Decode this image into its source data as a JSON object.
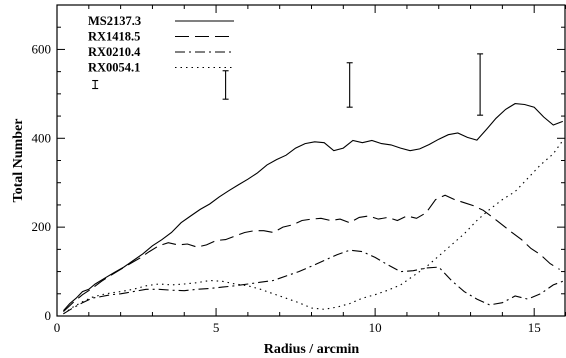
{
  "chart_data": {
    "type": "line",
    "xlabel": "Radius / arcmin",
    "ylabel": "Total Number",
    "xlim": [
      0,
      16
    ],
    "ylim": [
      0,
      700
    ],
    "x_ticks": [
      0,
      5,
      10,
      15
    ],
    "y_ticks": [
      0,
      200,
      400,
      600
    ],
    "grid": false,
    "legend_position": "top-left",
    "series": [
      {
        "name": "MS2137.3",
        "style": "solid",
        "x": [
          0.2,
          0.4,
          0.6,
          0.8,
          1.0,
          1.2,
          1.5,
          1.8,
          2.1,
          2.4,
          2.7,
          3.0,
          3.3,
          3.6,
          3.9,
          4.2,
          4.5,
          4.8,
          5.1,
          5.4,
          5.7,
          6.0,
          6.3,
          6.6,
          6.9,
          7.2,
          7.5,
          7.8,
          8.1,
          8.4,
          8.7,
          9.0,
          9.3,
          9.6,
          9.9,
          10.2,
          10.5,
          10.8,
          11.1,
          11.4,
          11.7,
          12.0,
          12.3,
          12.6,
          12.9,
          13.2,
          13.5,
          13.8,
          14.1,
          14.4,
          14.7,
          15.0,
          15.3,
          15.6,
          15.9
        ],
        "y": [
          12,
          28,
          40,
          55,
          60,
          72,
          85,
          98,
          110,
          125,
          140,
          158,
          172,
          188,
          210,
          225,
          240,
          252,
          268,
          282,
          295,
          308,
          322,
          340,
          352,
          362,
          378,
          388,
          392,
          390,
          372,
          378,
          395,
          390,
          395,
          388,
          385,
          378,
          372,
          376,
          386,
          398,
          408,
          412,
          402,
          396,
          420,
          445,
          465,
          478,
          476,
          470,
          448,
          430,
          438
        ]
      },
      {
        "name": "RX1418.5",
        "style": "dashed",
        "x": [
          0.2,
          0.5,
          0.8,
          1.1,
          1.4,
          1.7,
          2.0,
          2.3,
          2.6,
          2.9,
          3.2,
          3.5,
          3.8,
          4.1,
          4.4,
          4.7,
          5.0,
          5.3,
          5.6,
          5.9,
          6.2,
          6.5,
          6.8,
          7.1,
          7.4,
          7.7,
          8.0,
          8.3,
          8.6,
          8.9,
          9.2,
          9.5,
          9.8,
          10.1,
          10.4,
          10.7,
          11.0,
          11.3,
          11.6,
          11.9,
          12.2,
          12.5,
          12.8,
          13.1,
          13.4,
          13.7,
          14.0,
          14.3,
          14.6,
          14.9,
          15.2,
          15.5,
          15.8
        ],
        "y": [
          10,
          30,
          48,
          62,
          78,
          92,
          105,
          118,
          130,
          145,
          158,
          165,
          160,
          162,
          155,
          160,
          170,
          172,
          180,
          188,
          192,
          192,
          188,
          200,
          205,
          215,
          218,
          220,
          215,
          218,
          210,
          222,
          225,
          218,
          222,
          215,
          225,
          220,
          232,
          262,
          272,
          262,
          255,
          248,
          238,
          222,
          205,
          188,
          172,
          152,
          138,
          118,
          105
        ]
      },
      {
        "name": "RX0210.4",
        "style": "dashdot",
        "x": [
          0.2,
          0.5,
          0.8,
          1.1,
          1.4,
          1.7,
          2.0,
          2.4,
          2.8,
          3.2,
          3.6,
          4.0,
          4.4,
          4.8,
          5.2,
          5.6,
          6.0,
          6.4,
          6.8,
          7.2,
          7.6,
          8.0,
          8.4,
          8.8,
          9.2,
          9.6,
          10.0,
          10.4,
          10.8,
          11.2,
          11.6,
          12.0,
          12.4,
          12.8,
          13.2,
          13.6,
          14.0,
          14.4,
          14.8,
          15.2,
          15.6,
          15.9
        ],
        "y": [
          5,
          18,
          30,
          40,
          44,
          48,
          50,
          55,
          60,
          60,
          58,
          57,
          60,
          62,
          65,
          68,
          72,
          76,
          80,
          90,
          100,
          112,
          125,
          138,
          148,
          145,
          132,
          115,
          100,
          102,
          108,
          110,
          80,
          55,
          38,
          25,
          30,
          45,
          38,
          50,
          70,
          78
        ]
      },
      {
        "name": "RX0054.1",
        "style": "dotted",
        "x": [
          0.2,
          0.5,
          0.8,
          1.1,
          1.4,
          1.7,
          2.0,
          2.4,
          2.8,
          3.2,
          3.6,
          4.0,
          4.4,
          4.8,
          5.2,
          5.6,
          6.0,
          6.4,
          6.8,
          7.2,
          7.6,
          8.0,
          8.4,
          8.8,
          9.2,
          9.6,
          10.0,
          10.4,
          10.8,
          11.2,
          11.6,
          12.0,
          12.4,
          12.8,
          13.2,
          13.6,
          14.0,
          14.4,
          14.8,
          15.2,
          15.6,
          15.9
        ],
        "y": [
          5,
          20,
          32,
          42,
          48,
          52,
          55,
          60,
          68,
          72,
          70,
          72,
          75,
          80,
          78,
          72,
          68,
          60,
          50,
          40,
          30,
          18,
          15,
          20,
          28,
          40,
          48,
          58,
          70,
          90,
          110,
          135,
          160,
          185,
          215,
          240,
          262,
          280,
          310,
          340,
          365,
          395
        ]
      }
    ],
    "error_bars": [
      {
        "x": 1.2,
        "y_low": 512,
        "y_high": 530
      },
      {
        "x": 5.3,
        "y_low": 488,
        "y_high": 552
      },
      {
        "x": 9.2,
        "y_low": 470,
        "y_high": 570
      },
      {
        "x": 13.3,
        "y_low": 452,
        "y_high": 590
      }
    ]
  }
}
